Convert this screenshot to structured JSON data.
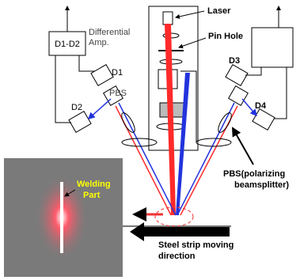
{
  "labels": {
    "laser": "Laser",
    "pin_hole": "Pin Hole",
    "diff_box": "D1-D2",
    "diff_amp": [
      "Differential",
      "Amp."
    ],
    "d1": "D1",
    "d2": "D2",
    "pbs": "PBS",
    "d3": "D3",
    "d4": "D4",
    "pbs_note": [
      "PBS(polarizing",
      "beamsplitter)"
    ],
    "welding": [
      "Welding",
      "Part"
    ],
    "steel": [
      "Steel strip moving",
      "direction"
    ]
  }
}
